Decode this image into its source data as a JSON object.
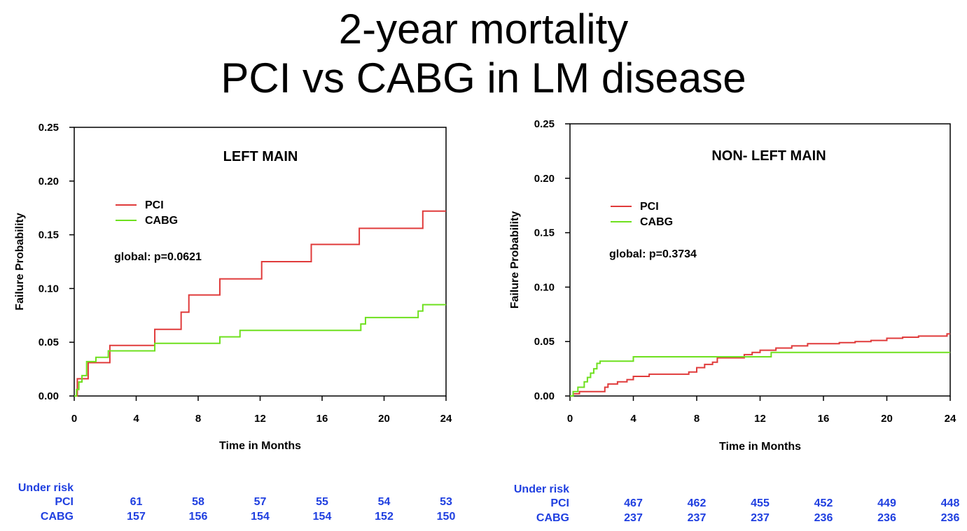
{
  "title": {
    "line1": "2-year mortality",
    "line2": "PCI vs CABG in LM disease"
  },
  "colors": {
    "pci": "#e03b3b",
    "cabg": "#6ee01e",
    "risk_text": "#1f3fe0"
  },
  "chart_data": [
    {
      "type": "line",
      "title": "LEFT MAIN",
      "xlabel": "Time in Months",
      "ylabel": "Failure Probability",
      "xlim": [
        0,
        24
      ],
      "ylim": [
        0,
        0.25
      ],
      "xticks": [
        "0",
        "4",
        "8",
        "12",
        "16",
        "20",
        "24"
      ],
      "yticks": [
        "0.00",
        "0.05",
        "0.10",
        "0.15",
        "0.20",
        "0.25"
      ],
      "annotation": "global: p=0.0621",
      "legend": "upper-left",
      "series": [
        {
          "name": "PCI",
          "step": true,
          "x": [
            0,
            0.2,
            0.5,
            0.9,
            2.3,
            5.2,
            6.9,
            7.4,
            9.4,
            12.1,
            15.3,
            18.4,
            22.5,
            24
          ],
          "y": [
            0,
            0.016,
            0.016,
            0.031,
            0.047,
            0.062,
            0.078,
            0.094,
            0.109,
            0.125,
            0.141,
            0.156,
            0.172,
            0.172
          ]
        },
        {
          "name": "CABG",
          "step": true,
          "x": [
            0,
            0.15,
            0.3,
            0.5,
            0.8,
            1.4,
            2.2,
            5.2,
            9.4,
            10.7,
            18.5,
            18.8,
            22.2,
            22.5,
            24
          ],
          "y": [
            0,
            0.006,
            0.013,
            0.019,
            0.032,
            0.036,
            0.042,
            0.049,
            0.055,
            0.061,
            0.067,
            0.073,
            0.079,
            0.085,
            0.085
          ]
        }
      ],
      "at_risk": {
        "label": "Under risk",
        "times": [
          4,
          8,
          12,
          16,
          20,
          24
        ],
        "rows": [
          {
            "name": "PCI",
            "values": [
              61,
              58,
              57,
              55,
              54,
              53
            ]
          },
          {
            "name": "CABG",
            "values": [
              157,
              156,
              154,
              154,
              152,
              150
            ]
          }
        ]
      }
    },
    {
      "type": "line",
      "title": "NON- LEFT MAIN",
      "xlabel": "Time in Months",
      "ylabel": "Failure Probability",
      "xlim": [
        0,
        24
      ],
      "ylim": [
        0,
        0.25
      ],
      "xticks": [
        "0",
        "4",
        "8",
        "12",
        "16",
        "20",
        "24"
      ],
      "yticks": [
        "0.00",
        "0.05",
        "0.10",
        "0.15",
        "0.20",
        "0.25"
      ],
      "annotation": "global: p=0.3734",
      "legend": "upper-left",
      "series": [
        {
          "name": "PCI",
          "step": true,
          "x": [
            0,
            0.2,
            0.6,
            2.2,
            2.4,
            3.0,
            3.6,
            4.0,
            5.0,
            7.5,
            8.0,
            8.5,
            9.0,
            9.3,
            11.0,
            11.5,
            12.0,
            13.0,
            14.0,
            15.0,
            17.0,
            18.0,
            19.0,
            20.0,
            21.0,
            22.0,
            23.0,
            23.8,
            24
          ],
          "y": [
            0,
            0.002,
            0.004,
            0.008,
            0.011,
            0.013,
            0.015,
            0.018,
            0.02,
            0.022,
            0.026,
            0.029,
            0.031,
            0.035,
            0.038,
            0.04,
            0.042,
            0.044,
            0.046,
            0.048,
            0.049,
            0.05,
            0.051,
            0.053,
            0.054,
            0.055,
            0.055,
            0.057,
            0.057
          ]
        },
        {
          "name": "CABG",
          "step": true,
          "x": [
            0,
            0.2,
            0.5,
            0.9,
            1.1,
            1.3,
            1.5,
            1.7,
            1.9,
            4.0,
            12.7,
            24
          ],
          "y": [
            0,
            0.004,
            0.008,
            0.013,
            0.017,
            0.021,
            0.025,
            0.03,
            0.032,
            0.036,
            0.04,
            0.04
          ]
        }
      ],
      "at_risk": {
        "label": "Under risk",
        "times": [
          4,
          8,
          12,
          16,
          20,
          24
        ],
        "rows": [
          {
            "name": "PCI",
            "values": [
              467,
              462,
              455,
              452,
              449,
              448
            ]
          },
          {
            "name": "CABG",
            "values": [
              237,
              237,
              237,
              236,
              236,
              236
            ]
          }
        ]
      }
    }
  ]
}
